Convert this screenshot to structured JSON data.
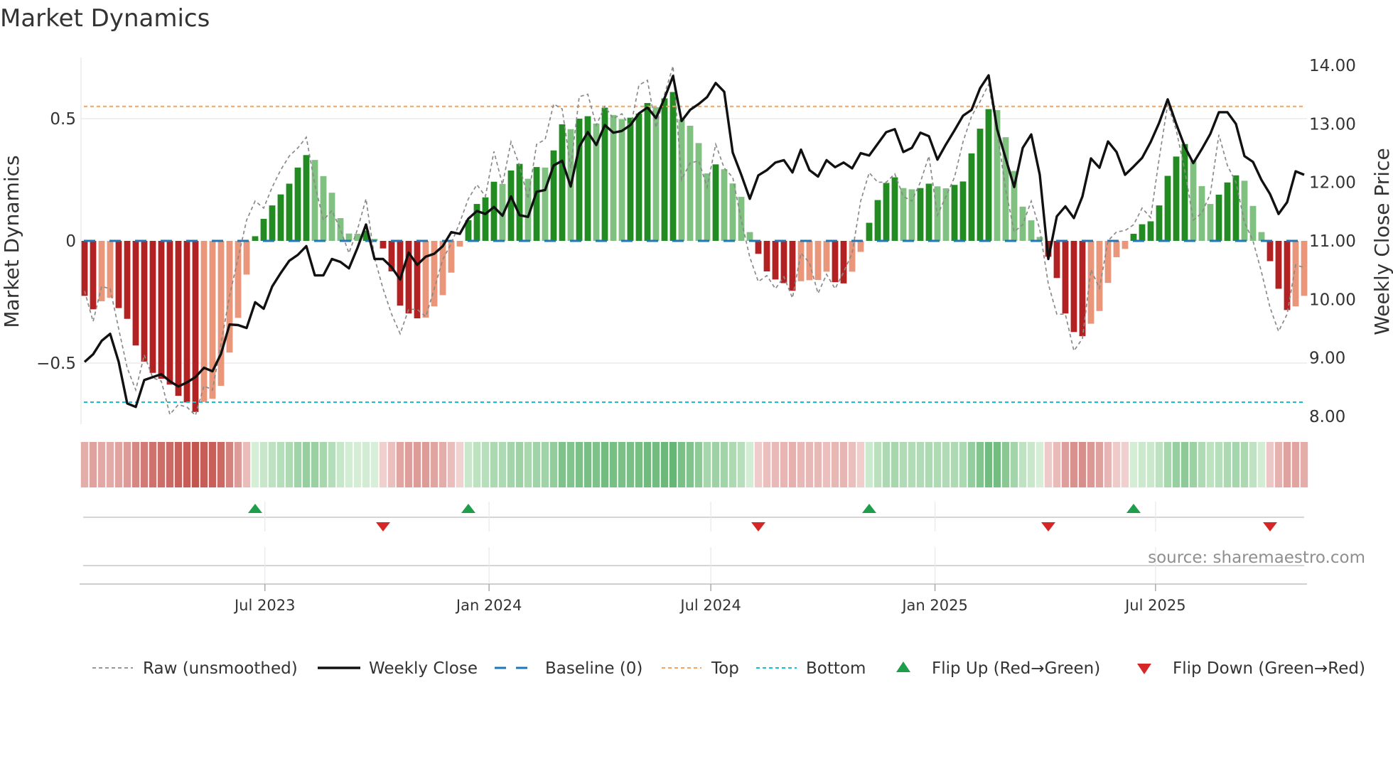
{
  "title": "Market Dynamics",
  "source": "source: sharemaestro.com",
  "chart_data": {
    "type": "bar",
    "title": "Market Dynamics",
    "ylabel_left": "Market Dynamics",
    "ylabel_right": "Weekly Close Price",
    "xlabel": "",
    "start_date": "2023-02-03",
    "interval_days": 7,
    "ylim_left": [
      -0.75,
      0.75
    ],
    "ylim_right": [
      7.865,
      14.135
    ],
    "yticks_left": [
      {
        "value": 0.5,
        "label": "0.5"
      },
      {
        "value": 0,
        "label": "0"
      },
      {
        "value": -0.5,
        "label": "−0.5"
      }
    ],
    "yticks_right": [
      {
        "value": 14,
        "label": "14.00"
      },
      {
        "value": 13,
        "label": "13.00"
      },
      {
        "value": 12,
        "label": "12.00"
      },
      {
        "value": 11,
        "label": "11.00"
      },
      {
        "value": 10,
        "label": "10.00"
      },
      {
        "value": 9,
        "label": "9.00"
      },
      {
        "value": 8,
        "label": "8.00"
      }
    ],
    "xticks": [
      {
        "date": "2023-07-01",
        "label": "Jul 2023"
      },
      {
        "date": "2024-01-01",
        "label": "Jan 2024"
      },
      {
        "date": "2024-07-01",
        "label": "Jul 2024"
      },
      {
        "date": "2025-01-01",
        "label": "Jan 2025"
      },
      {
        "date": "2025-07-01",
        "label": "Jul 2025"
      }
    ],
    "grid": true,
    "baseline": 0,
    "top": 0.55,
    "bottom": -0.66,
    "legend_position": "bottom",
    "legend": {
      "raw": "Raw (unsmoothed)",
      "close": "Weekly Close",
      "baseline": "Baseline (0)",
      "top": "Top",
      "bottom": "Bottom",
      "flip_up": "Flip Up (Red→Green)",
      "flip_down": "Flip Down (Green→Red)"
    },
    "colors": {
      "pos_rising": "#228b22",
      "pos_falling": "#80c080",
      "neg_falling": "#b22222",
      "neg_rising": "#e9967a",
      "close": "#111111",
      "raw": "#8a8a8a",
      "baseline": "#1f77b4",
      "top": "#f4a460",
      "bottom": "#17becf",
      "flip_up": "#1e9e4a",
      "flip_down": "#d62728"
    },
    "values": [
      -0.225,
      -0.28,
      -0.247,
      -0.233,
      -0.275,
      -0.319,
      -0.428,
      -0.494,
      -0.54,
      -0.564,
      -0.588,
      -0.634,
      -0.661,
      -0.7,
      -0.659,
      -0.646,
      -0.593,
      -0.457,
      -0.315,
      -0.138,
      0.019,
      0.09,
      0.145,
      0.19,
      0.234,
      0.3,
      0.351,
      0.331,
      0.265,
      0.197,
      0.093,
      0.03,
      0.029,
      0.042,
      0.008,
      -0.031,
      -0.125,
      -0.265,
      -0.297,
      -0.317,
      -0.314,
      -0.268,
      -0.222,
      -0.13,
      -0.023,
      0.085,
      0.151,
      0.178,
      0.242,
      0.233,
      0.288,
      0.315,
      0.254,
      0.302,
      0.3,
      0.37,
      0.477,
      0.457,
      0.5,
      0.51,
      0.48,
      0.545,
      0.515,
      0.498,
      0.504,
      0.521,
      0.564,
      0.547,
      0.583,
      0.609,
      0.497,
      0.471,
      0.4,
      0.276,
      0.313,
      0.293,
      0.235,
      0.18,
      0.036,
      -0.053,
      -0.125,
      -0.158,
      -0.173,
      -0.204,
      -0.165,
      -0.161,
      -0.16,
      -0.126,
      -0.169,
      -0.174,
      -0.126,
      -0.045,
      0.074,
      0.167,
      0.237,
      0.26,
      0.216,
      0.211,
      0.216,
      0.234,
      0.223,
      0.215,
      0.229,
      0.243,
      0.358,
      0.459,
      0.539,
      0.535,
      0.424,
      0.286,
      0.14,
      0.084,
      0.016,
      -0.065,
      -0.152,
      -0.297,
      -0.373,
      -0.39,
      -0.339,
      -0.287,
      -0.172,
      -0.067,
      -0.033,
      0.029,
      0.068,
      0.08,
      0.145,
      0.266,
      0.345,
      0.396,
      0.328,
      0.224,
      0.151,
      0.189,
      0.239,
      0.268,
      0.246,
      0.143,
      0.036,
      -0.083,
      -0.196,
      -0.283,
      -0.268,
      -0.225
    ],
    "raw": [
      -0.205,
      -0.33,
      -0.186,
      -0.196,
      -0.36,
      -0.52,
      -0.61,
      -0.467,
      -0.56,
      -0.574,
      -0.71,
      -0.67,
      -0.68,
      -0.714,
      -0.593,
      -0.61,
      -0.42,
      -0.225,
      -0.07,
      0.085,
      0.163,
      0.134,
      0.22,
      0.29,
      0.347,
      0.38,
      0.424,
      0.23,
      0.085,
      0.124,
      0.047,
      -0.05,
      0.047,
      0.172,
      -0.07,
      -0.196,
      -0.3,
      -0.38,
      -0.28,
      -0.28,
      -0.31,
      -0.196,
      -0.076,
      -0.01,
      0.076,
      0.172,
      0.23,
      0.182,
      0.366,
      0.23,
      0.405,
      0.308,
      0.172,
      0.395,
      0.415,
      0.56,
      0.54,
      0.298,
      0.59,
      0.6,
      0.473,
      0.55,
      0.5,
      0.52,
      0.463,
      0.637,
      0.657,
      0.463,
      0.6,
      0.715,
      0.25,
      0.318,
      0.328,
      0.22,
      0.395,
      0.298,
      0.26,
      0.085,
      -0.067,
      -0.167,
      -0.142,
      -0.196,
      -0.147,
      -0.234,
      -0.05,
      -0.09,
      -0.215,
      -0.137,
      -0.196,
      -0.128,
      -0.05,
      0.163,
      0.279,
      0.24,
      0.24,
      0.274,
      0.182,
      0.163,
      0.24,
      0.347,
      0.105,
      0.182,
      0.26,
      0.405,
      0.51,
      0.57,
      0.64,
      0.45,
      0.21,
      0.037,
      0.066,
      0.163,
      0.047,
      -0.176,
      -0.3,
      -0.3,
      -0.45,
      -0.4,
      -0.118,
      -0.194,
      0,
      0.037,
      0.042,
      0.066,
      0.134,
      0.095,
      0.337,
      0.56,
      0.453,
      0.289,
      0.085,
      0.114,
      0.192,
      0.434,
      0.308,
      0.24,
      0.076,
      0,
      -0.128,
      -0.273,
      -0.37,
      -0.3,
      -0.099,
      -0.109
    ],
    "weekly_close": [
      8.93,
      9.06,
      9.29,
      9.41,
      8.93,
      8.22,
      8.16,
      8.62,
      8.67,
      8.72,
      8.6,
      8.51,
      8.58,
      8.67,
      8.83,
      8.77,
      9.07,
      9.57,
      9.56,
      9.51,
      9.95,
      9.84,
      10.22,
      10.45,
      10.66,
      10.76,
      10.91,
      10.41,
      10.41,
      10.69,
      10.64,
      10.53,
      10.88,
      11.28,
      10.69,
      10.69,
      10.55,
      10.34,
      10.8,
      10.59,
      10.73,
      10.78,
      10.91,
      11.15,
      11.12,
      11.38,
      11.51,
      11.46,
      11.58,
      11.43,
      11.76,
      11.44,
      11.41,
      11.84,
      11.87,
      12.29,
      12.37,
      11.93,
      12.61,
      12.86,
      12.64,
      12.98,
      12.85,
      12.88,
      12.98,
      13.18,
      13.28,
      13.1,
      13.44,
      13.82,
      13.05,
      13.24,
      13.34,
      13.46,
      13.7,
      13.55,
      12.51,
      12.13,
      11.72,
      12.12,
      12.21,
      12.34,
      12.38,
      12.17,
      12.56,
      12.21,
      12.1,
      12.38,
      12.26,
      12.34,
      12.24,
      12.5,
      12.46,
      12.66,
      12.86,
      12.91,
      12.52,
      12.59,
      12.85,
      12.79,
      12.39,
      12.65,
      12.89,
      13.14,
      13.24,
      13.61,
      13.83,
      12.91,
      12.41,
      11.92,
      12.59,
      12.82,
      12.13,
      10.69,
      11.42,
      11.59,
      11.39,
      11.76,
      12.41,
      12.25,
      12.7,
      12.52,
      12.13,
      12.27,
      12.42,
      12.69,
      13.02,
      13.42,
      13.0,
      12.61,
      12.33,
      12.57,
      12.83,
      13.2,
      13.2,
      13.0,
      12.45,
      12.35,
      12.04,
      11.8,
      11.46,
      11.66,
      12.19,
      12.13
    ]
  }
}
